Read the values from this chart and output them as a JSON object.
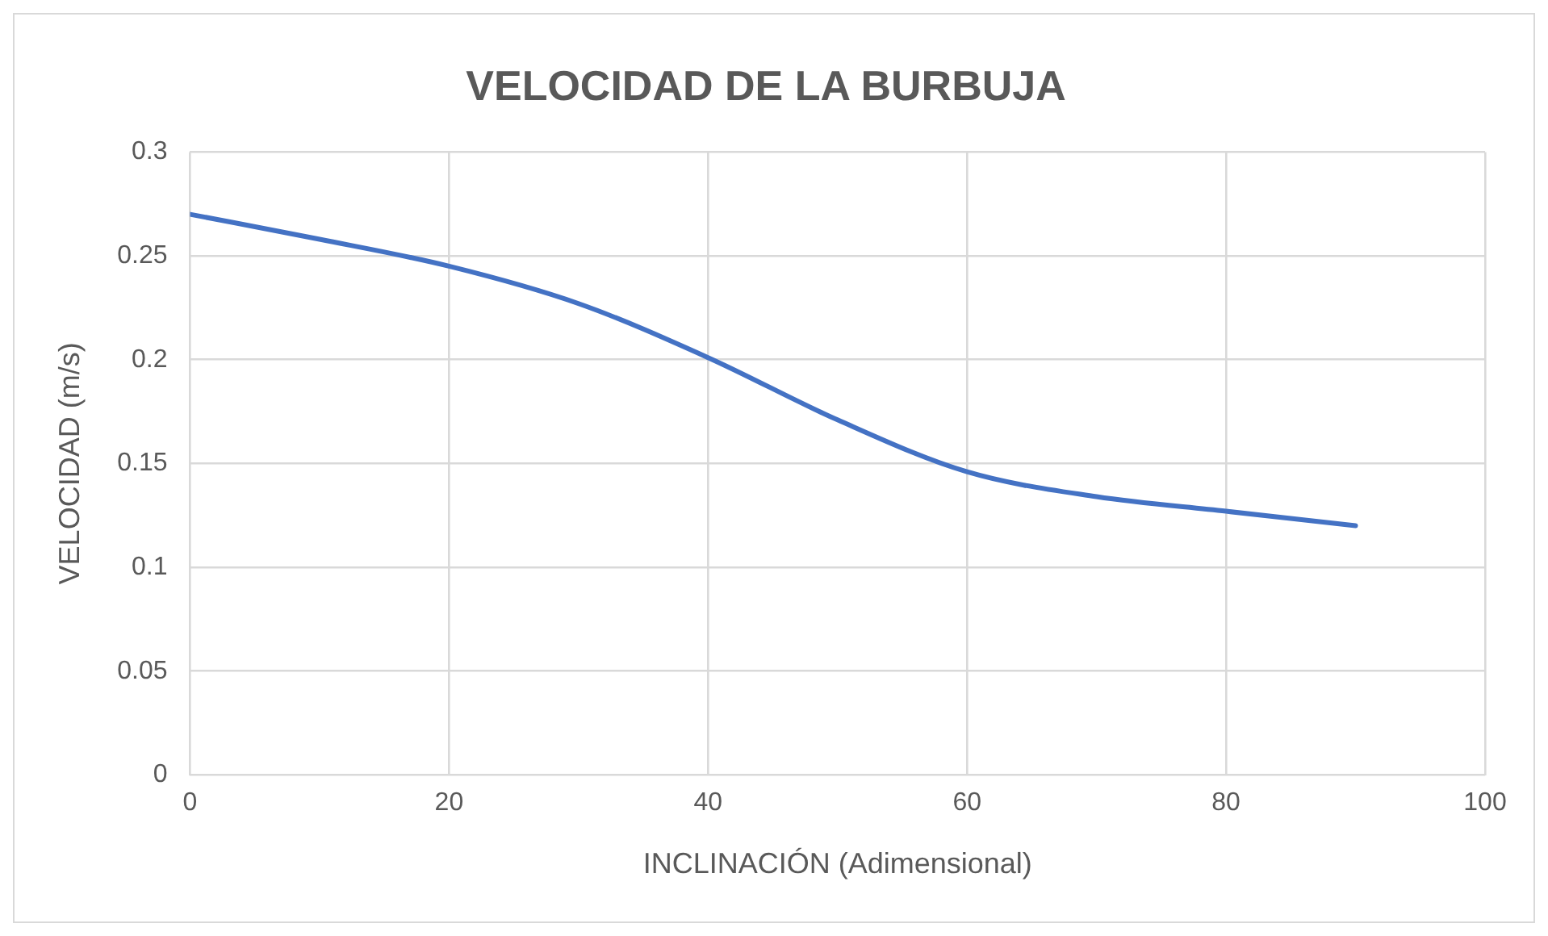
{
  "chart_data": {
    "type": "line",
    "title": "VELOCIDAD DE LA BURBUJA",
    "xlabel": "INCLINACIÓN (Adimensional)",
    "ylabel": "VELOCIDAD (m/s)",
    "x": [
      0,
      10,
      20,
      30,
      40,
      50,
      60,
      70,
      80,
      90
    ],
    "series": [
      {
        "color": "#4472c4",
        "values": [
          0.27,
          0.258,
          0.245,
          0.227,
          0.201,
          0.171,
          0.146,
          0.134,
          0.127,
          0.12
        ]
      }
    ],
    "xlim": [
      0,
      100
    ],
    "xticks": [
      0,
      20,
      40,
      60,
      80,
      100
    ],
    "ylim": [
      0,
      0.3
    ],
    "yticks": [
      0,
      0.05,
      0.1,
      0.15,
      0.2,
      0.25,
      0.3
    ],
    "grid": true,
    "legend": false,
    "marker": "none",
    "line_style": "solid"
  }
}
